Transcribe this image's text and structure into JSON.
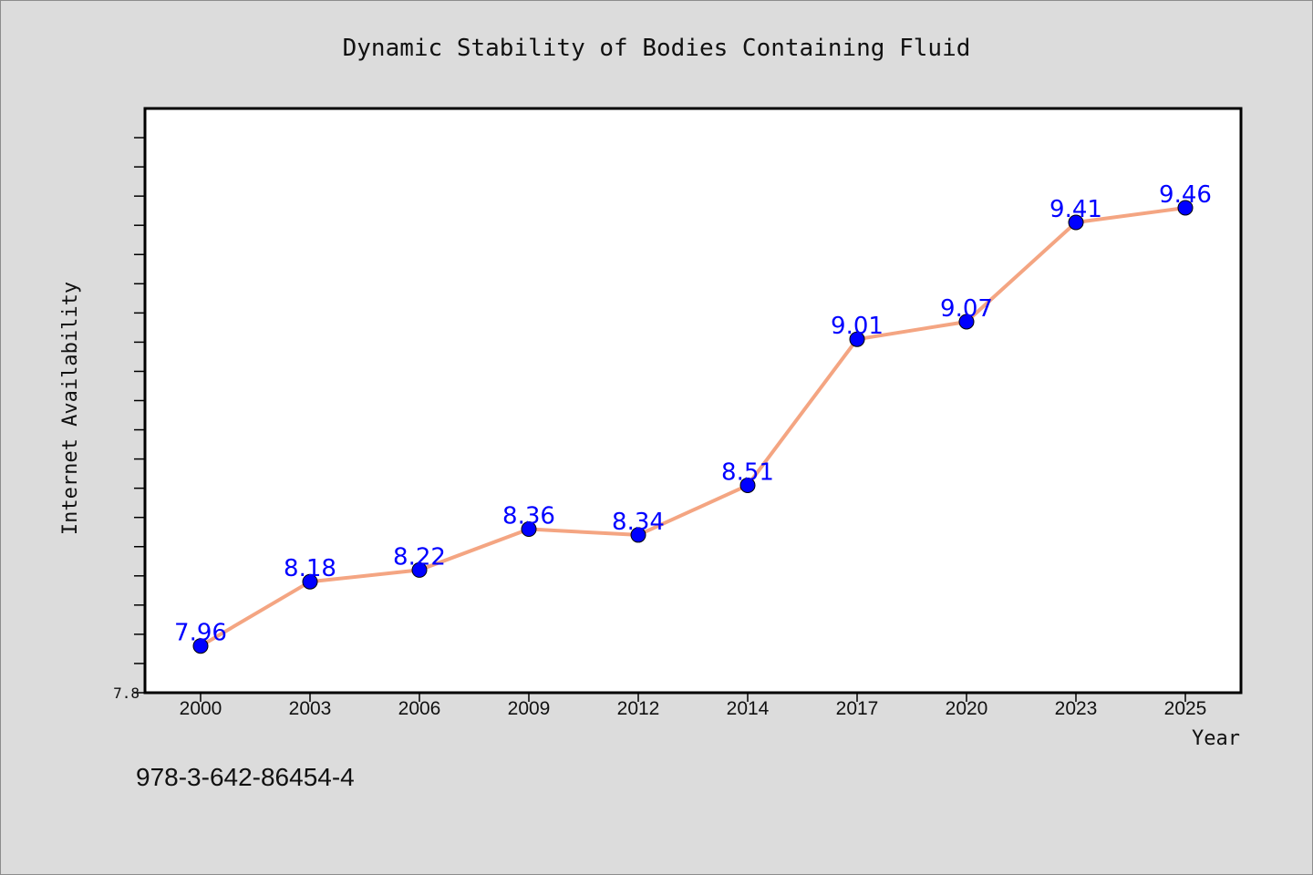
{
  "chart_data": {
    "type": "line",
    "title": "Dynamic Stability of Bodies Containing Fluid",
    "xlabel": "Year",
    "ylabel": "Internet Availability",
    "categories": [
      "2000",
      "2003",
      "2006",
      "2009",
      "2012",
      "2014",
      "2017",
      "2020",
      "2023",
      "2025"
    ],
    "series": [
      {
        "values": [
          7.96,
          8.18,
          8.22,
          8.36,
          8.34,
          8.51,
          9.01,
          9.07,
          9.41,
          9.46
        ],
        "labels": [
          "7.96",
          "8.18",
          "8.22",
          "8.36",
          "8.34",
          "8.51",
          "9.01",
          "9.07",
          "9.41",
          "9.46"
        ]
      }
    ],
    "ylim": [
      7.8,
      9.8
    ],
    "yticks_labeled": [
      "7.8"
    ],
    "ytick_step": 0.1,
    "grid": false,
    "legend": "none",
    "colors": {
      "line": "#f4a582",
      "marker": "#0000ff",
      "data_label": "#0000ff",
      "background": "#dcdcdc",
      "plot_background": "#ffffff"
    }
  },
  "footer": {
    "isbn": "978-3-642-86454-4"
  }
}
